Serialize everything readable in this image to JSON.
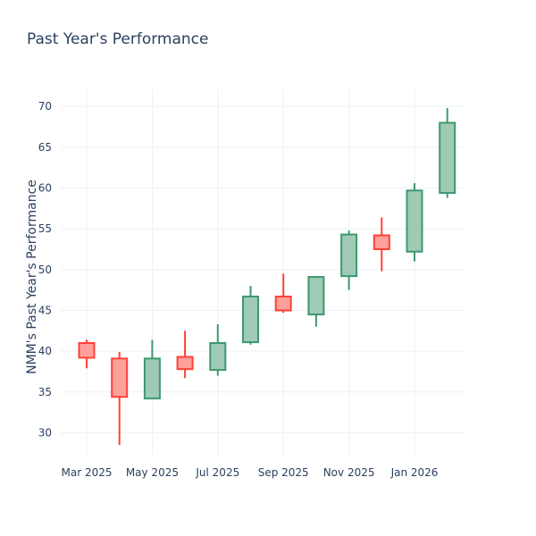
{
  "chart_data": {
    "type": "candlestick",
    "title": "Past Year's Performance",
    "xlabel": "",
    "ylabel": "NMM's Past Year's Performance",
    "ylim": [
      27.2,
      72.1
    ],
    "grid": true,
    "yticks": [
      30,
      35,
      40,
      45,
      50,
      55,
      60,
      65,
      70
    ],
    "xticks": [
      {
        "date": "2025-03",
        "label": "Mar 2025"
      },
      {
        "date": "2025-05",
        "label": "May 2025"
      },
      {
        "date": "2025-07",
        "label": "Jul 2025"
      },
      {
        "date": "2025-09",
        "label": "Sep 2025"
      },
      {
        "date": "2025-11",
        "label": "Nov 2025"
      },
      {
        "date": "2026-01",
        "label": "Jan 2026"
      }
    ],
    "colors": {
      "increasing": "#3d9970",
      "decreasing": "#ff4136",
      "increasing_fill": "#9ecab6",
      "decreasing_fill": "#ffa09b"
    },
    "candles": [
      {
        "date": "2025-03",
        "open": 41.0,
        "high": 41.4,
        "low": 37.9,
        "close": 39.2
      },
      {
        "date": "2025-04",
        "open": 39.1,
        "high": 39.9,
        "low": 28.5,
        "close": 34.4
      },
      {
        "date": "2025-05",
        "open": 34.2,
        "high": 41.4,
        "low": 34.2,
        "close": 39.1
      },
      {
        "date": "2025-06",
        "open": 39.3,
        "high": 42.5,
        "low": 36.7,
        "close": 37.8
      },
      {
        "date": "2025-07",
        "open": 37.7,
        "high": 43.3,
        "low": 37.0,
        "close": 41.0
      },
      {
        "date": "2025-08",
        "open": 41.1,
        "high": 48.0,
        "low": 40.8,
        "close": 46.7
      },
      {
        "date": "2025-09",
        "open": 46.7,
        "high": 49.5,
        "low": 44.7,
        "close": 45.0
      },
      {
        "date": "2025-10",
        "open": 44.5,
        "high": 49.2,
        "low": 43.0,
        "close": 49.1
      },
      {
        "date": "2025-11",
        "open": 49.2,
        "high": 54.8,
        "low": 47.5,
        "close": 54.3
      },
      {
        "date": "2025-12",
        "open": 54.2,
        "high": 56.4,
        "low": 49.8,
        "close": 52.5
      },
      {
        "date": "2026-01",
        "open": 52.2,
        "high": 60.6,
        "low": 51.0,
        "close": 59.7
      },
      {
        "date": "2026-02",
        "open": 59.4,
        "high": 69.8,
        "low": 58.8,
        "close": 68.0
      }
    ]
  }
}
